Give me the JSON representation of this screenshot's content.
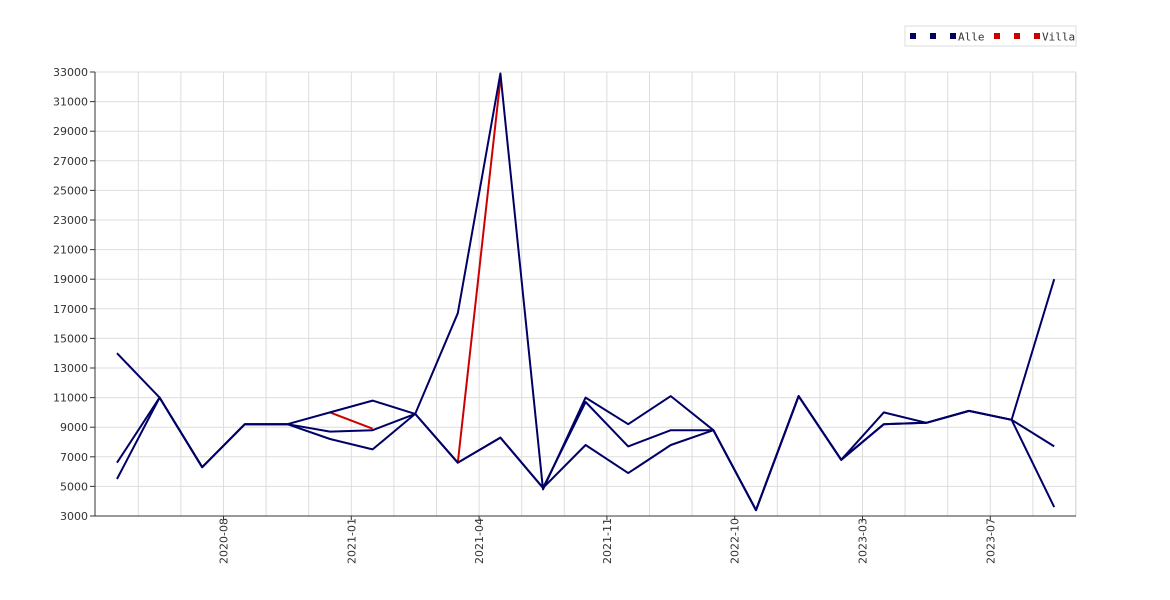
{
  "chart_data": {
    "type": "line",
    "grid": true,
    "legend_position": "top-right",
    "ylim": [
      3000,
      33000
    ],
    "y_ticks": [
      3000,
      5000,
      7000,
      9000,
      11000,
      13000,
      15000,
      17000,
      19000,
      21000,
      23000,
      25000,
      27000,
      29000,
      31000,
      33000
    ],
    "x_tick_labels": [
      "2020-08",
      "2021-01",
      "2021-04",
      "2021-11",
      "2022-10",
      "2023-03",
      "2023-07"
    ],
    "x_tick_index": [
      2,
      5,
      8,
      11,
      14,
      17,
      20
    ],
    "x_points": 23,
    "legend": [
      {
        "label": "",
        "color": "#000066"
      },
      {
        "label": "",
        "color": "#000066"
      },
      {
        "label": "Alle",
        "color": "#000066"
      },
      {
        "label": "",
        "color": "#cc0000"
      },
      {
        "label": "",
        "color": "#cc0000"
      },
      {
        "label": "Villa",
        "color": "#cc0000"
      }
    ],
    "series": [
      {
        "color": "#cc0000",
        "values": [
          null,
          null,
          null,
          null,
          null,
          10000,
          8900,
          null,
          6600,
          32500,
          null,
          null,
          null,
          null,
          null,
          null,
          null,
          null,
          null,
          null,
          null,
          null,
          null
        ]
      },
      {
        "color": "#000066",
        "values": [
          6600,
          11000,
          6300,
          9200,
          9200,
          8700,
          8800,
          9900,
          6600,
          8300,
          4900,
          10700,
          7700,
          8800,
          8800,
          3400,
          11100,
          6800,
          10000,
          9300,
          10100,
          9500,
          3600
        ]
      },
      {
        "color": "#000066",
        "values": [
          5500,
          11000,
          6300,
          9200,
          9200,
          8200,
          7500,
          9900,
          6600,
          8300,
          4900,
          7800,
          5900,
          7800,
          8800,
          3400,
          11100,
          6800,
          9200,
          9300,
          10100,
          9500,
          7700
        ]
      },
      {
        "color": "#000066",
        "values": [
          14000,
          11000,
          6300,
          9200,
          9200,
          10000,
          10800,
          9900,
          16700,
          32900,
          4800,
          11000,
          9200,
          11100,
          8800,
          3400,
          11100,
          6800,
          9200,
          9300,
          10100,
          9500,
          19000
        ]
      }
    ]
  }
}
